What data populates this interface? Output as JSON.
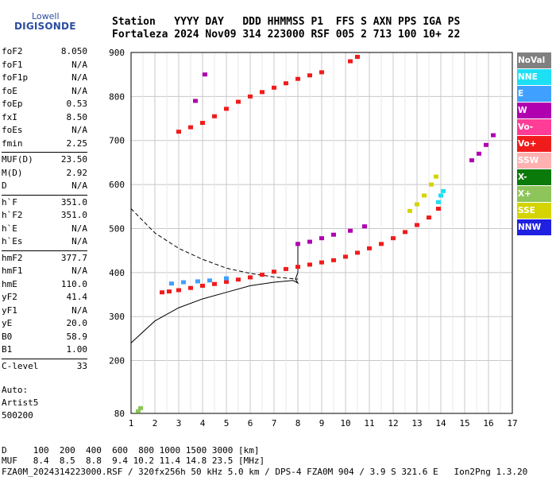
{
  "logo": {
    "top": "Lowell",
    "main": "DIGISONDE"
  },
  "header": {
    "line1": "Station   YYYY DAY   DDD HHMMSS P1  FFS S AXN PPS IGA PS",
    "line2": "Fortaleza 2024 Nov09 314 223000 RSF 005 2 713 100 10+ 22"
  },
  "params": [
    [
      {
        "label": "foF2",
        "value": "8.050"
      },
      {
        "label": "foF1",
        "value": "N/A"
      },
      {
        "label": "foF1p",
        "value": "N/A"
      },
      {
        "label": "foE",
        "value": "N/A"
      },
      {
        "label": "foEp",
        "value": "0.53"
      },
      {
        "label": "fxI",
        "value": "8.50"
      },
      {
        "label": "foEs",
        "value": "N/A"
      },
      {
        "label": "fmin",
        "value": "2.25"
      }
    ],
    [
      {
        "label": "MUF(D)",
        "value": "23.50"
      },
      {
        "label": "M(D)",
        "value": "2.92"
      },
      {
        "label": "D",
        "value": "N/A"
      }
    ],
    [
      {
        "label": "h`F",
        "value": "351.0"
      },
      {
        "label": "h`F2",
        "value": "351.0"
      },
      {
        "label": "h`E",
        "value": "N/A"
      },
      {
        "label": "h`Es",
        "value": "N/A"
      }
    ],
    [
      {
        "label": "hmF2",
        "value": "377.7"
      },
      {
        "label": "hmF1",
        "value": "N/A"
      },
      {
        "label": "hmE",
        "value": "110.0"
      },
      {
        "label": "yF2",
        "value": "41.4"
      },
      {
        "label": "yF1",
        "value": "N/A"
      },
      {
        "label": "yE",
        "value": "20.0"
      },
      {
        "label": "B0",
        "value": "58.9"
      },
      {
        "label": "B1",
        "value": "1.00"
      }
    ],
    [
      {
        "label": "C-level",
        "value": "33"
      }
    ]
  ],
  "auto": {
    "line1": "Auto:",
    "line2": "Artist5",
    "line3": "500200"
  },
  "footer": {
    "line1": "D     100  200  400  600  800 1000 1500 3000 [km]",
    "line2": "MUF   8.4  8.5  8.8  9.4 10.2 11.4 14.8 23.5 [MHz]",
    "line3": "FZA0M_2024314223000.RSF / 320fx256h 50 kHz 5.0 km / DPS-4 FZA0M 904 / 3.9 S 321.6 E   Ion2Png 1.3.20"
  },
  "legend": [
    {
      "label": "NoVal",
      "color": "#808080"
    },
    {
      "label": "NNE",
      "color": "#1ee0f5"
    },
    {
      "label": "E",
      "color": "#3fa0ff"
    },
    {
      "label": "W",
      "color": "#b000b0"
    },
    {
      "label": "Vo-",
      "color": "#ff3c96"
    },
    {
      "label": "Vo+",
      "color": "#f01c1c"
    },
    {
      "label": "SSW",
      "color": "#ffb0b0"
    },
    {
      "label": "X-",
      "color": "#0a7a0a"
    },
    {
      "label": "X+",
      "color": "#8dc55a"
    },
    {
      "label": "SSE",
      "color": "#d4d400"
    },
    {
      "label": "NNW",
      "color": "#2020e0"
    }
  ],
  "chart_data": {
    "type": "scatter",
    "title": "",
    "xlabel": "",
    "ylabel": "",
    "xlim": [
      1,
      17
    ],
    "ylim": [
      80,
      900
    ],
    "x_ticks": [
      1,
      2,
      3,
      4,
      5,
      6,
      7,
      8,
      9,
      10,
      11,
      12,
      13,
      14,
      15,
      16,
      17
    ],
    "y_ticks": [
      80,
      200,
      300,
      400,
      500,
      600,
      700,
      800,
      900
    ],
    "grid": true,
    "legend_position": "right",
    "series": [
      {
        "color": "#f01c1c",
        "points": [
          [
            2.3,
            355
          ],
          [
            2.6,
            357
          ],
          [
            3,
            360
          ],
          [
            3.5,
            365
          ],
          [
            4,
            370
          ],
          [
            4.5,
            374
          ],
          [
            5,
            379
          ],
          [
            5.5,
            384
          ],
          [
            6,
            389
          ],
          [
            6.5,
            395
          ],
          [
            7,
            402
          ],
          [
            7.5,
            408
          ],
          [
            8,
            413
          ],
          [
            8.5,
            418
          ],
          [
            9,
            423
          ],
          [
            9.5,
            428
          ],
          [
            10,
            436
          ],
          [
            10.5,
            445
          ],
          [
            11,
            455
          ],
          [
            11.5,
            465
          ],
          [
            12,
            478
          ],
          [
            12.5,
            492
          ],
          [
            13,
            508
          ],
          [
            13.5,
            525
          ],
          [
            13.9,
            545
          ]
        ]
      },
      {
        "color": "#3fa0ff",
        "points": [
          [
            2.7,
            375
          ],
          [
            3.2,
            378
          ],
          [
            3.8,
            380
          ],
          [
            4.3,
            382
          ],
          [
            5,
            387
          ]
        ]
      },
      {
        "color": "#b000b0",
        "points": [
          [
            8,
            465
          ],
          [
            8.5,
            470
          ],
          [
            9,
            478
          ],
          [
            9.5,
            486
          ],
          [
            10.2,
            495
          ],
          [
            10.8,
            505
          ],
          [
            15.3,
            655
          ],
          [
            15.6,
            670
          ],
          [
            15.9,
            690
          ],
          [
            16.2,
            712
          ],
          [
            3.7,
            790
          ],
          [
            4.1,
            850
          ]
        ]
      },
      {
        "color": "#d4d400",
        "points": [
          [
            12.7,
            540
          ],
          [
            13,
            555
          ],
          [
            13.3,
            575
          ],
          [
            13.6,
            600
          ],
          [
            13.8,
            618
          ]
        ]
      },
      {
        "color": "#1ee0f5",
        "points": [
          [
            13.9,
            560
          ],
          [
            14,
            575
          ],
          [
            14.1,
            585
          ]
        ]
      },
      {
        "color": "#f01c1c",
        "points": [
          [
            3,
            720
          ],
          [
            3.5,
            730
          ],
          [
            4,
            740
          ],
          [
            4.5,
            755
          ],
          [
            5,
            772
          ],
          [
            5.5,
            788
          ],
          [
            6,
            800
          ],
          [
            6.5,
            810
          ],
          [
            7,
            820
          ],
          [
            7.5,
            830
          ],
          [
            8,
            840
          ],
          [
            8.5,
            848
          ],
          [
            9,
            855
          ],
          [
            10.2,
            880
          ],
          [
            10.5,
            890
          ]
        ]
      },
      {
        "color": "#8dc55a",
        "points": [
          [
            1.3,
            85
          ],
          [
            1.4,
            92
          ]
        ]
      }
    ],
    "curves": [
      {
        "name": "",
        "points": [
          [
            1,
            240
          ],
          [
            2,
            290
          ],
          [
            3,
            320
          ],
          [
            4,
            340
          ],
          [
            5,
            355
          ],
          [
            6,
            370
          ],
          [
            7,
            378
          ],
          [
            7.8,
            382
          ],
          [
            8,
            376
          ],
          [
            7.9,
            385
          ],
          [
            8,
            400
          ],
          [
            8,
            440
          ],
          [
            8,
            470
          ]
        ]
      },
      {
        "name": "",
        "points": [
          [
            1,
            545
          ],
          [
            2,
            490
          ],
          [
            3,
            455
          ],
          [
            4,
            430
          ],
          [
            5,
            410
          ],
          [
            6,
            398
          ],
          [
            7,
            390
          ],
          [
            8,
            385
          ]
        ],
        "dashed": true
      }
    ]
  }
}
